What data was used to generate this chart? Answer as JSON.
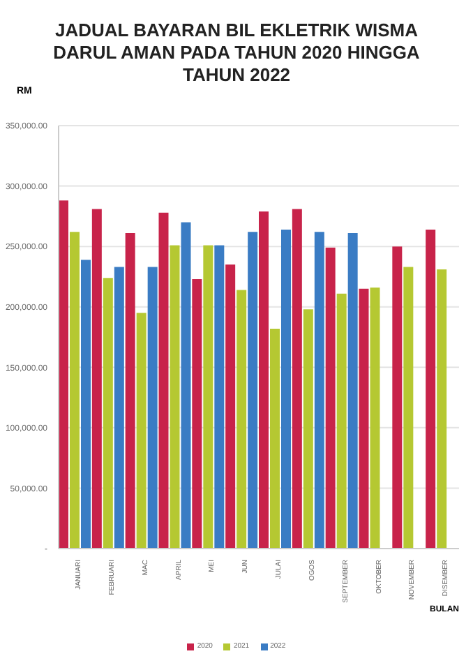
{
  "chart_data": {
    "type": "bar",
    "title": "JADUAL BAYARAN BIL EKLETRIK WISMA DARUL AMAN PADA TAHUN 2020 HINGGA TAHUN 2022",
    "ylabel": "RM",
    "xlabel": "BULAN",
    "categories": [
      "JANUARI",
      "FEBRUARI",
      "MAC",
      "APRIL",
      "MEI",
      "JUN",
      "JULAI",
      "OGOS",
      "SEPTEMBER",
      "OKTOBER",
      "NOVEMBER",
      "DISEMBER"
    ],
    "series": [
      {
        "name": "2020",
        "color": "#c8234a",
        "values": [
          288000,
          281000,
          261000,
          278000,
          223000,
          235000,
          279000,
          281000,
          249000,
          215000,
          250000,
          264000
        ]
      },
      {
        "name": "2021",
        "color": "#b5c832",
        "values": [
          262000,
          224000,
          195000,
          251000,
          251000,
          214000,
          182000,
          198000,
          211000,
          216000,
          233000,
          231000
        ]
      },
      {
        "name": "2022",
        "color": "#3a7cc4",
        "values": [
          239000,
          233000,
          233000,
          270000,
          251000,
          262000,
          264000,
          262000,
          261000,
          null,
          null,
          null
        ]
      }
    ],
    "ylim": [
      0,
      350000
    ],
    "yticks": [
      {
        "value": 0,
        "label": "-"
      },
      {
        "value": 50000,
        "label": "50,000.00"
      },
      {
        "value": 100000,
        "label": "100,000.00"
      },
      {
        "value": 150000,
        "label": "150,000.00"
      },
      {
        "value": 200000,
        "label": "200,000.00"
      },
      {
        "value": 250000,
        "label": "250,000.00"
      },
      {
        "value": 300000,
        "label": "300,000.00"
      },
      {
        "value": 350000,
        "label": "350,000.00"
      }
    ],
    "grid": "y",
    "legend": "bottom"
  }
}
